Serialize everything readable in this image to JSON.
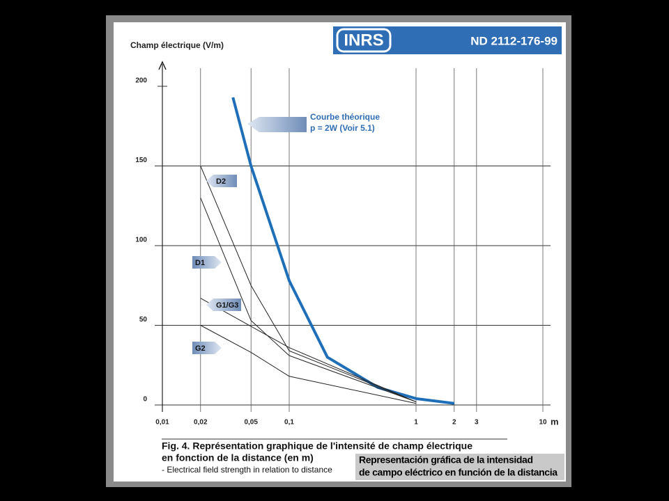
{
  "chart_data": {
    "type": "line",
    "header": {
      "logo": "INRS",
      "reference": "ND 2112-176-99"
    },
    "y_label": "Champ électrique (V/m)",
    "x_unit": "m",
    "log_x": true,
    "xlim": [
      0.01,
      10
    ],
    "xticks": [
      {
        "value": 0.01,
        "label": "0,01"
      },
      {
        "value": 0.02,
        "label": "0,02"
      },
      {
        "value": 0.05,
        "label": "0,05"
      },
      {
        "value": 0.1,
        "label": "0,1"
      },
      1,
      2,
      3,
      10
    ],
    "ylim": [
      0,
      200
    ],
    "yticks": [
      0,
      50,
      100,
      150,
      200
    ],
    "grid": true,
    "series": [
      {
        "name": "Courbe théorique",
        "color": "#1f6fb8",
        "x": [
          0.036,
          0.05,
          0.1,
          0.2,
          0.5,
          1,
          2
        ],
        "values": [
          193,
          150,
          78,
          30,
          11,
          4,
          1
        ]
      },
      {
        "name": "D2",
        "color": "#222222",
        "x": [
          0.02,
          0.05,
          0.1,
          1
        ],
        "values": [
          150,
          75,
          34,
          2
        ]
      },
      {
        "name": "D1",
        "color": "#222222",
        "x": [
          0.02,
          0.05,
          0.1,
          1
        ],
        "values": [
          130,
          53,
          31,
          2
        ]
      },
      {
        "name": "G1/G3",
        "color": "#222222",
        "x": [
          0.02,
          0.1,
          1
        ],
        "values": [
          67,
          36,
          2
        ]
      },
      {
        "name": "G2",
        "color": "#222222",
        "x": [
          0.02,
          0.05,
          0.1,
          1
        ],
        "values": [
          50,
          33,
          18,
          1
        ]
      }
    ],
    "annotation": "p = 2W (Voir 5.1)",
    "caption": [
      "Fig. 4. Représentation graphique de l'intensité de champ électrique",
      "en fonction de la distance (en m)",
      "- Electrical field strength in relation to distance"
    ],
    "overlay": [
      "Representación gráfica de la intensidad",
      "de campo eléctrico en función de la distancia"
    ]
  }
}
